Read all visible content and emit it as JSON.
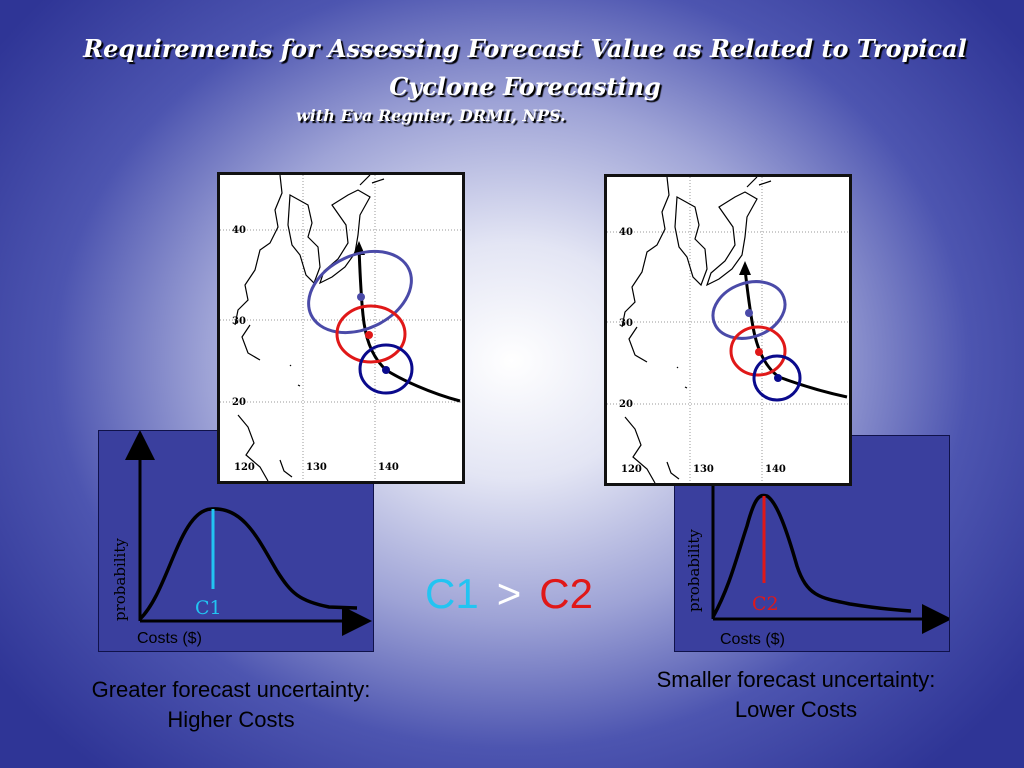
{
  "title": "Requirements for Assessing Forecast Value as Related to Tropical Cyclone Forecasting",
  "subtitle": "with Eva Regnier,  DRMI, NPS.",
  "left_panel": {
    "map_lat_labels": [
      "40",
      "30",
      "20"
    ],
    "map_lon_labels": [
      "120",
      "130",
      "140"
    ],
    "y_label": "probability",
    "x_label": "Costs ($)",
    "marker_label": "C1",
    "caption_line1": "Greater forecast uncertainty:",
    "caption_line2": "Higher Costs"
  },
  "right_panel": {
    "map_lat_labels": [
      "40",
      "30",
      "20"
    ],
    "map_lon_labels": [
      "120",
      "130",
      "140"
    ],
    "y_label": "probability",
    "x_label": "Costs ($)",
    "marker_label": "C2",
    "caption_line1": "Smaller forecast uncertainty:",
    "caption_line2": "Lower Costs"
  },
  "comparison": {
    "left": "C1",
    "operator": ">",
    "right": "C2"
  },
  "colors": {
    "c1": "#22c4f2",
    "c2": "#e01818",
    "ellipse_far": "#4a4aa8",
    "ellipse_mid": "#e01818",
    "ellipse_near": "#0a0a8c",
    "panel": "#3a3f9e"
  }
}
